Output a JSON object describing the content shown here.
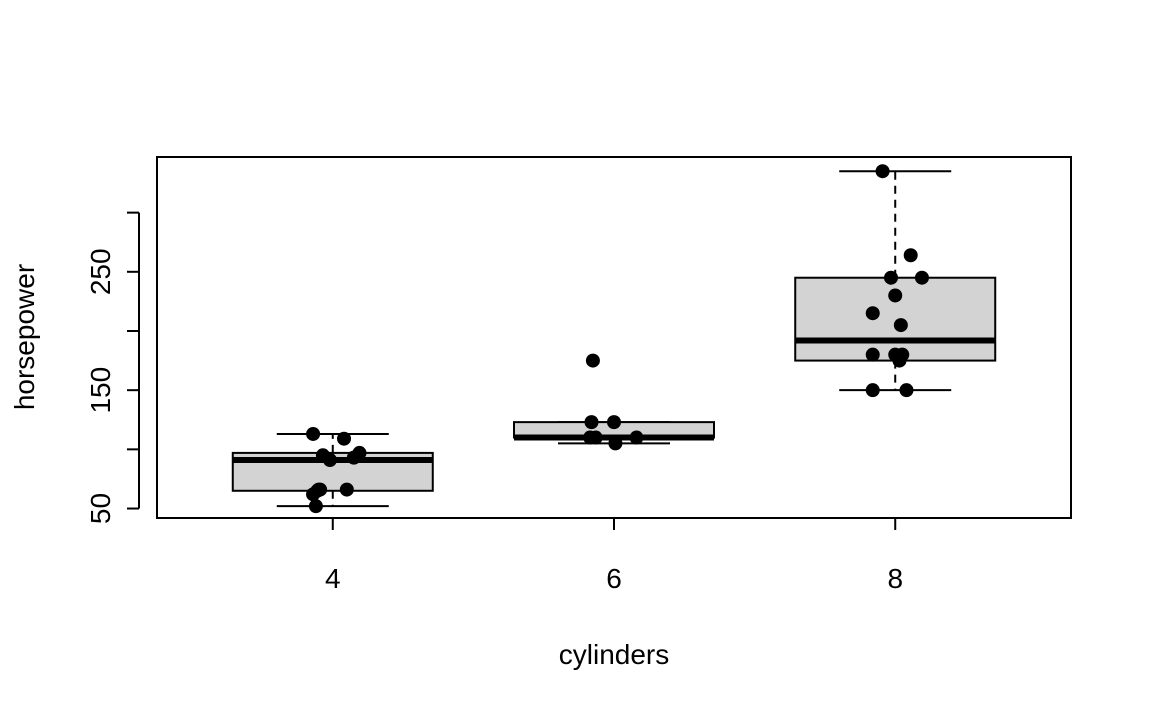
{
  "chart_data": {
    "type": "box",
    "title": "",
    "xlabel": "cylinders",
    "ylabel": "horsepower",
    "categories": [
      "4",
      "6",
      "8"
    ],
    "x_positions": [
      4,
      6,
      8
    ],
    "xlim": [
      2.75,
      9.25
    ],
    "ylim": [
      42,
      347
    ],
    "y_ticks": [
      50,
      100,
      150,
      200,
      250,
      300
    ],
    "y_tick_labels": [
      "50",
      "",
      "150",
      "",
      "250",
      ""
    ],
    "boxes": [
      {
        "category": "4",
        "whisker_low": 52,
        "q1": 65,
        "median": 91,
        "q3": 97,
        "whisker_high": 113
      },
      {
        "category": "6",
        "whisker_low": 105,
        "q1": 110,
        "median": 110,
        "q3": 123,
        "whisker_high": 123
      },
      {
        "category": "8",
        "whisker_low": 150,
        "q1": 175,
        "median": 192,
        "q3": 245,
        "whisker_high": 335
      }
    ],
    "points": [
      {
        "x": 3.86,
        "y": 113
      },
      {
        "x": 4.08,
        "y": 109
      },
      {
        "x": 3.93,
        "y": 95
      },
      {
        "x": 3.98,
        "y": 91
      },
      {
        "x": 4.15,
        "y": 93
      },
      {
        "x": 4.19,
        "y": 97
      },
      {
        "x": 3.86,
        "y": 62
      },
      {
        "x": 3.89,
        "y": 65
      },
      {
        "x": 3.91,
        "y": 66
      },
      {
        "x": 4.1,
        "y": 66
      },
      {
        "x": 3.88,
        "y": 52
      },
      {
        "x": 3.9,
        "y": 66
      },
      {
        "x": 5.85,
        "y": 175
      },
      {
        "x": 5.84,
        "y": 123
      },
      {
        "x": 6.0,
        "y": 123
      },
      {
        "x": 5.87,
        "y": 110
      },
      {
        "x": 5.83,
        "y": 110
      },
      {
        "x": 6.16,
        "y": 110
      },
      {
        "x": 6.01,
        "y": 105
      },
      {
        "x": 7.91,
        "y": 335
      },
      {
        "x": 8.11,
        "y": 264
      },
      {
        "x": 7.97,
        "y": 245
      },
      {
        "x": 8.19,
        "y": 245
      },
      {
        "x": 8.0,
        "y": 230
      },
      {
        "x": 7.84,
        "y": 215
      },
      {
        "x": 8.04,
        "y": 205
      },
      {
        "x": 7.84,
        "y": 180
      },
      {
        "x": 8.0,
        "y": 180
      },
      {
        "x": 8.05,
        "y": 180
      },
      {
        "x": 8.03,
        "y": 175
      },
      {
        "x": 7.84,
        "y": 150
      },
      {
        "x": 8.08,
        "y": 150
      }
    ],
    "box_fill": "#d3d3d3",
    "line_color": "#000000",
    "point_color": "#000000",
    "grid": false,
    "legend": "none"
  }
}
